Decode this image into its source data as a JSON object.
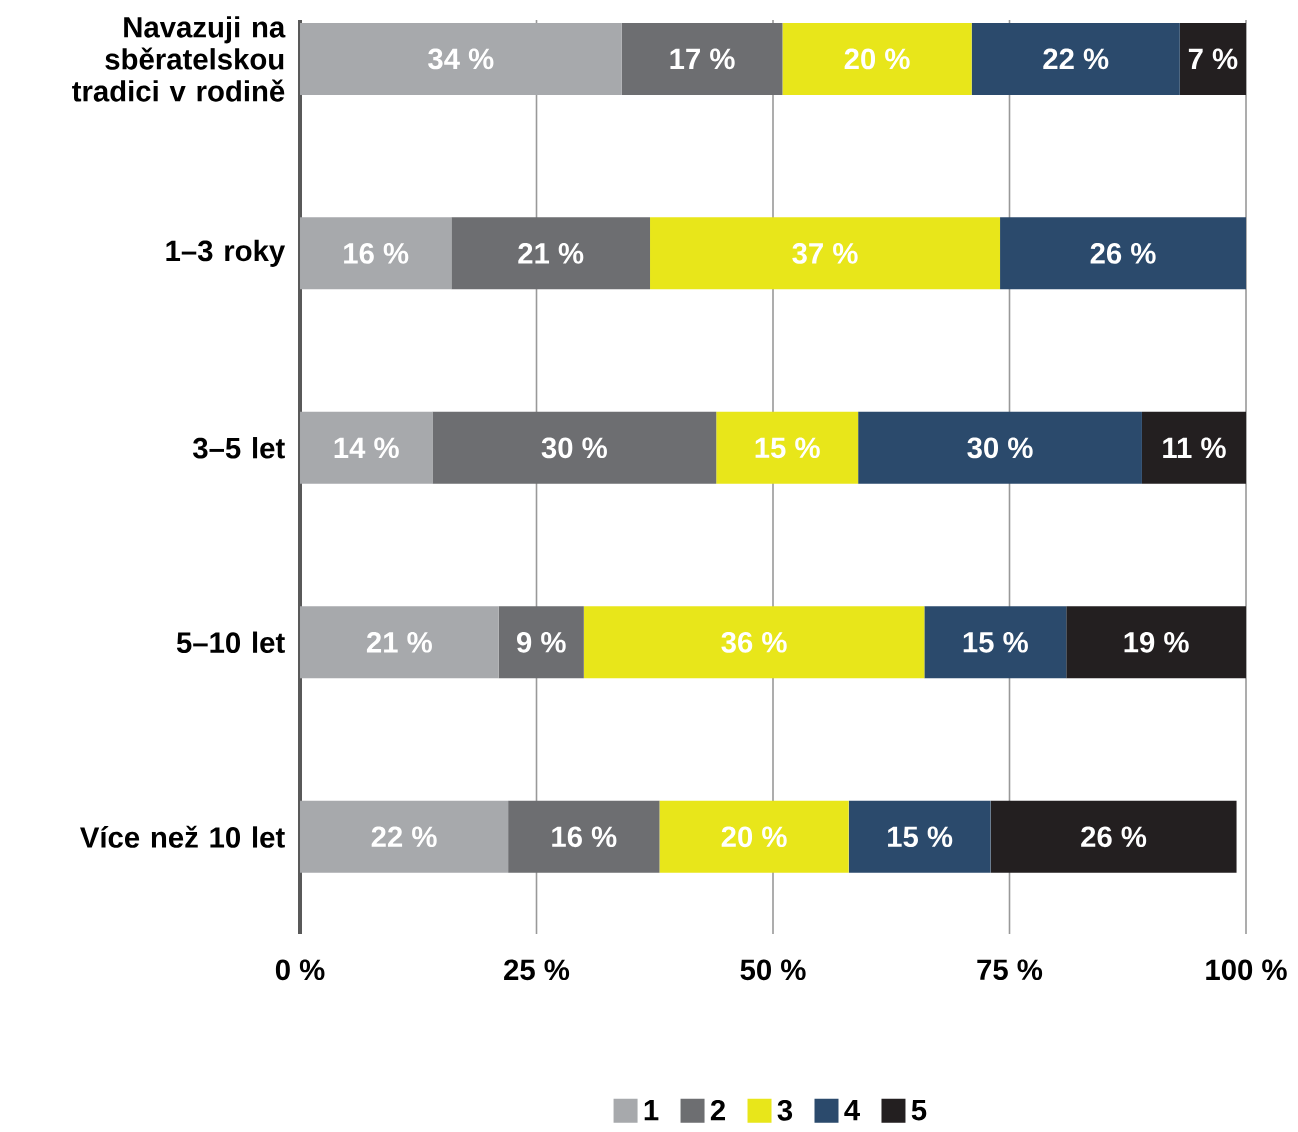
{
  "chart_data": {
    "type": "bar",
    "orientation": "horizontal",
    "stacked": true,
    "categories": [
      "Navazuji na sběratelskou tradici v rodině",
      "1–3 roky",
      "3–5 let",
      "5–10 let",
      "Více než 10 let"
    ],
    "series": [
      {
        "name": "1",
        "color": "#a7a9ac",
        "values": [
          34,
          16,
          14,
          21,
          22
        ],
        "value_labels": [
          "34 %",
          "16 %",
          "14 %",
          "21 %",
          "22 %"
        ]
      },
      {
        "name": "2",
        "color": "#6d6e71",
        "values": [
          17,
          21,
          30,
          9,
          16
        ],
        "value_labels": [
          "17 %",
          "21 %",
          "30 %",
          "9 %",
          "16 %"
        ]
      },
      {
        "name": "3",
        "color": "#e8e61a",
        "values": [
          20,
          37,
          15,
          36,
          20
        ],
        "value_labels": [
          "20 %",
          "37 %",
          "15 %",
          "36 %",
          "20 %"
        ]
      },
      {
        "name": "4",
        "color": "#2b4a6c",
        "values": [
          22,
          26,
          30,
          15,
          15
        ],
        "value_labels": [
          "22 %",
          "26 %",
          "30 %",
          "15 %",
          "15 %"
        ]
      },
      {
        "name": "5",
        "color": "#231f20",
        "values": [
          7,
          null,
          11,
          19,
          26
        ],
        "value_labels": [
          "7 %",
          null,
          "11 %",
          "19 %",
          "26 %"
        ]
      }
    ],
    "xlim": [
      0,
      100
    ],
    "xticks": [
      {
        "value": 0,
        "label": "0 %"
      },
      {
        "value": 25,
        "label": "25 %"
      },
      {
        "value": 50,
        "label": "50 %"
      },
      {
        "value": 75,
        "label": "75 %"
      },
      {
        "value": 100,
        "label": "100 %"
      }
    ],
    "grid": "x",
    "legend": "bottom"
  }
}
